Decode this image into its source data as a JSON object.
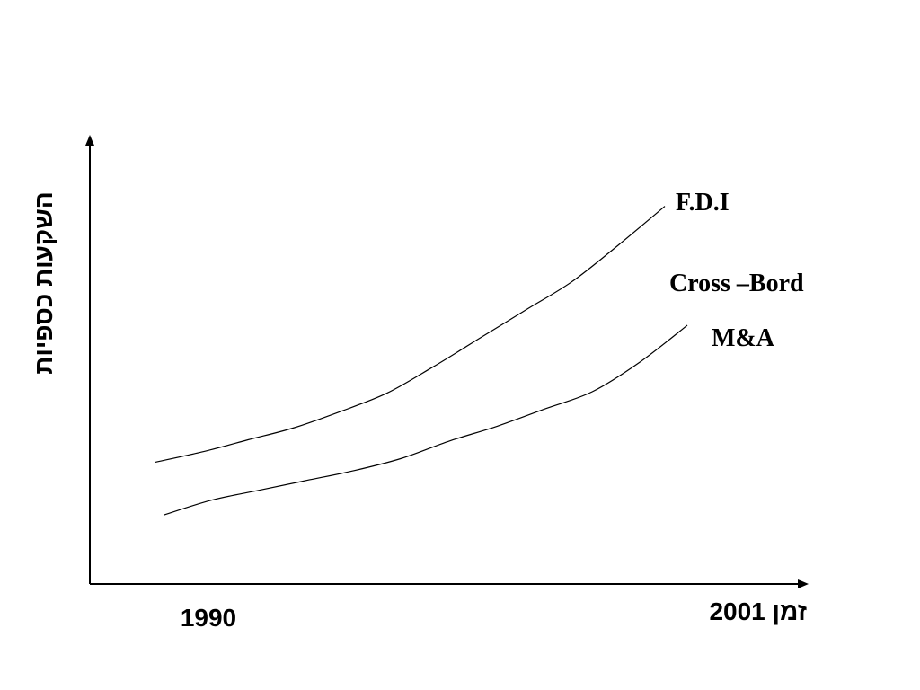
{
  "chart_data": {
    "type": "line",
    "title": "",
    "ylabel": "השקעות כספיות",
    "xlabel": "זמן",
    "x_tick_labels": {
      "start": "1990",
      "end": "2001"
    },
    "x_range": [
      1990,
      2001
    ],
    "y_axis_values_shown": false,
    "grid": false,
    "series": [
      {
        "name": "F.D.I",
        "x": [
          1990,
          1991,
          1992,
          1993,
          1994,
          1995,
          1996,
          1997,
          1998,
          1999,
          2000,
          2001
        ],
        "values": [
          1.0,
          1.5,
          2.1,
          2.7,
          3.5,
          4.4,
          5.7,
          7.1,
          8.5,
          9.9,
          11.7,
          13.6
        ]
      },
      {
        "name": "Cross –Bord M&A",
        "label_lines": [
          "Cross –Bord",
          "M&A"
        ],
        "x": [
          1990,
          1991,
          1992,
          1993,
          1994,
          1995,
          1996,
          1997,
          1998,
          1999,
          2000,
          2001
        ],
        "values": [
          0.0,
          0.6,
          1.0,
          1.4,
          1.8,
          2.3,
          3.0,
          3.6,
          4.3,
          5.0,
          6.2,
          7.7
        ]
      }
    ]
  }
}
